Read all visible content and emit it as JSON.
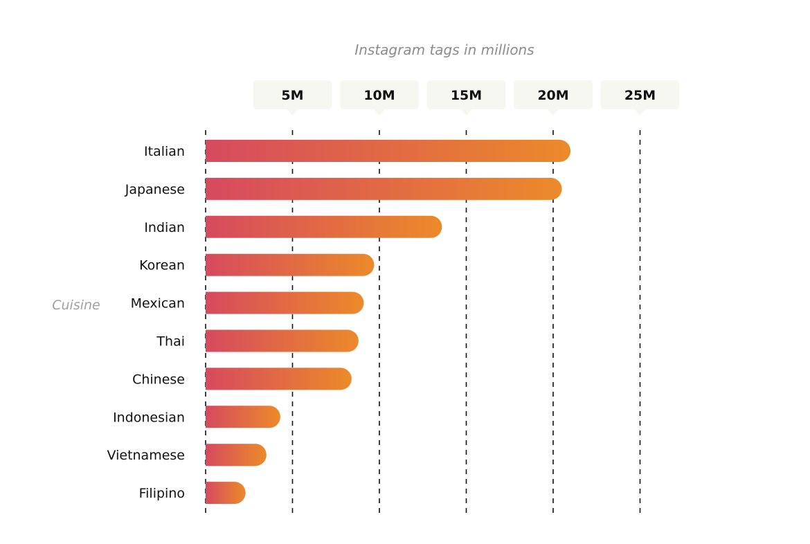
{
  "chart_data": {
    "type": "bar",
    "orientation": "horizontal",
    "title": "",
    "xlabel": "Instagram tags in millions",
    "ylabel": "Cuisine",
    "categories": [
      "Italian",
      "Japanese",
      "Indian",
      "Korean",
      "Mexican",
      "Thai",
      "Chinese",
      "Indonesian",
      "Vietnamese",
      "Filipino"
    ],
    "values": [
      21.0,
      20.5,
      13.6,
      9.7,
      9.1,
      8.8,
      8.4,
      4.3,
      3.5,
      2.3
    ],
    "ticks": [
      {
        "value": 5,
        "label": "5M"
      },
      {
        "value": 10,
        "label": "10M"
      },
      {
        "value": 15,
        "label": "15M"
      },
      {
        "value": 20,
        "label": "20M"
      },
      {
        "value": 25,
        "label": "25M"
      }
    ],
    "xlim": [
      0,
      25
    ],
    "grid": true,
    "colors": {
      "bar_start": "#d64a5e",
      "bar_end": "#ec8a2a",
      "tick_box": "#f7f7f2"
    }
  }
}
